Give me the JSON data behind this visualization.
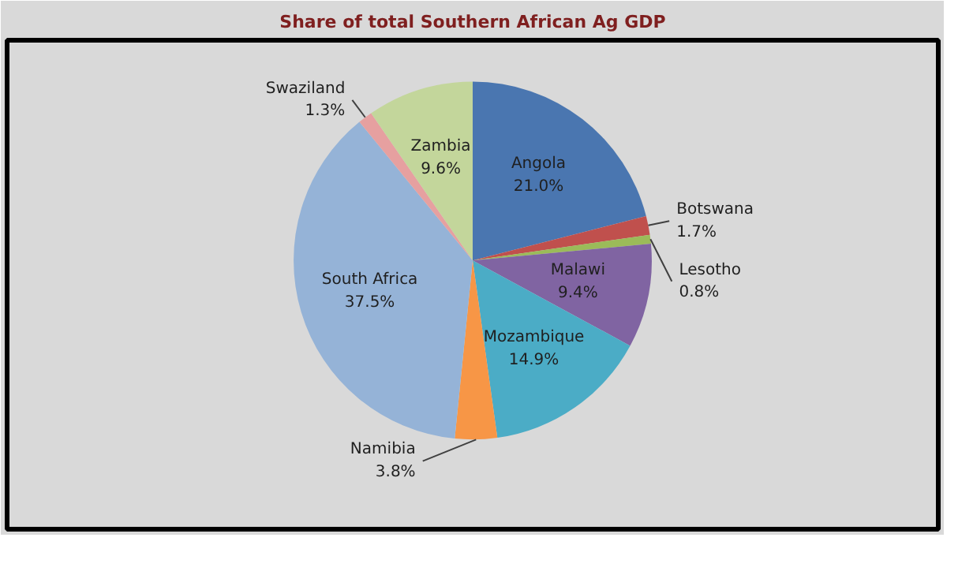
{
  "chart_data": {
    "type": "pie",
    "title": "Share of total Southern African Ag GDP",
    "categories": [
      "Angola",
      "Botswana",
      "Lesotho",
      "Malawi",
      "Mozambique",
      "Namibia",
      "South Africa",
      "Swaziland",
      "Zambia"
    ],
    "values": [
      21.0,
      1.7,
      0.8,
      9.4,
      14.9,
      3.8,
      37.5,
      1.3,
      9.6
    ],
    "value_labels": [
      "21.0%",
      "1.7%",
      "0.8%",
      "9.4%",
      "14.9%",
      "3.8%",
      "37.5%",
      "1.3%",
      "9.6%"
    ],
    "colors": [
      "#4a76b0",
      "#c0504d",
      "#9bbb59",
      "#8064a2",
      "#4bacc6",
      "#f79646",
      "#95b3d7",
      "#e6a0a0",
      "#c3d69b"
    ]
  }
}
